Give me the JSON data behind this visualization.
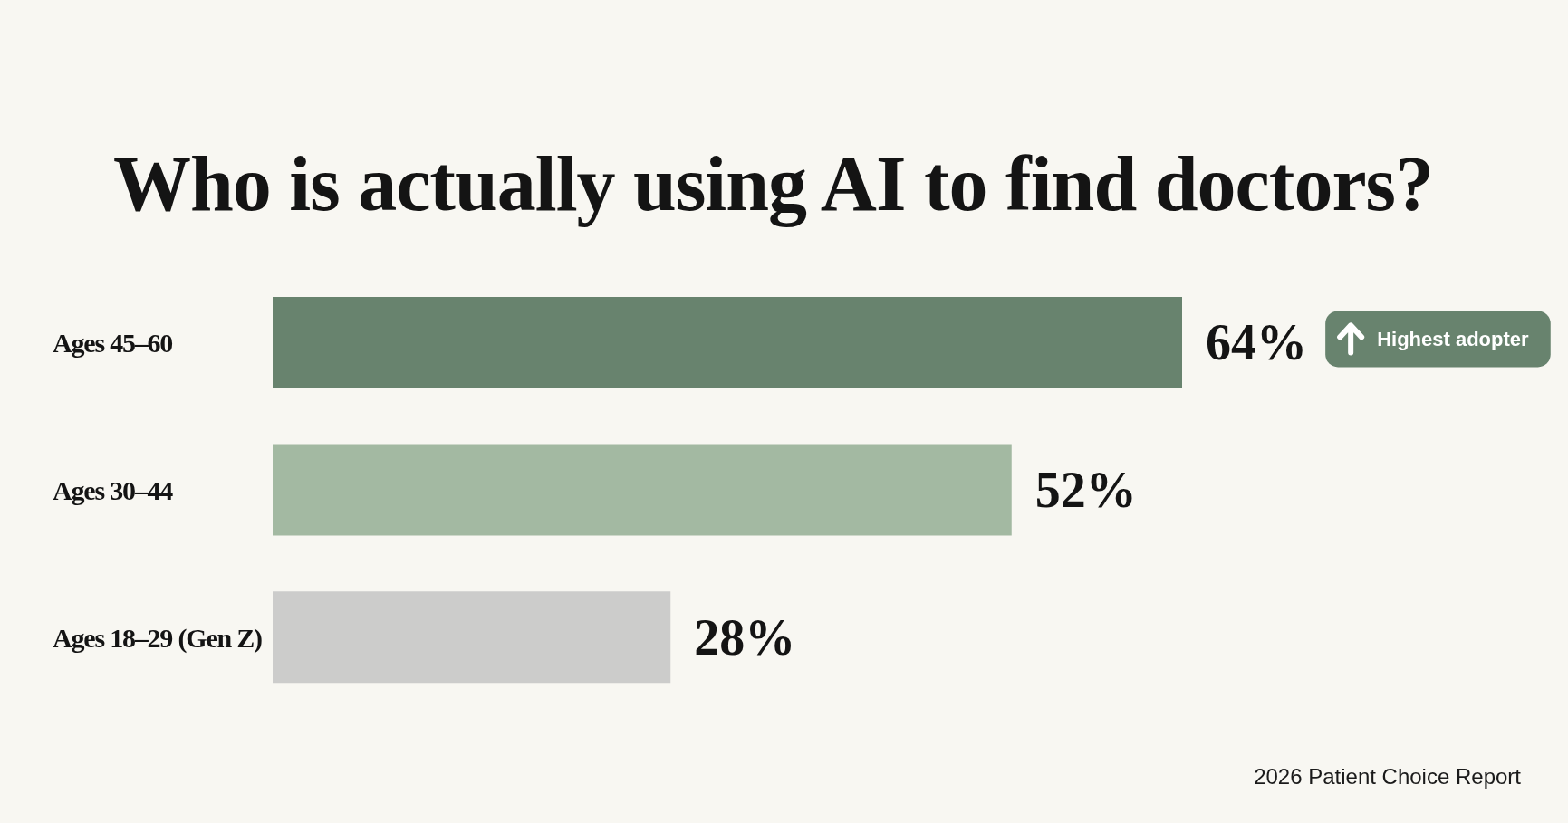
{
  "chart_data": {
    "type": "bar",
    "orientation": "horizontal",
    "title": "Who is actually using AI to find doctors?",
    "categories": [
      "Ages 45–60",
      "Ages 30–44",
      "Ages 18–29 (Gen Z)"
    ],
    "values": [
      64,
      52,
      28
    ],
    "colors": [
      "#68836e",
      "#a3b9a2",
      "#cccccb"
    ],
    "value_labels": [
      "64%",
      "52%",
      "28%"
    ],
    "tick_labels": "y",
    "annotations": [
      "Highest adopter",
      "2026 Patient Choice Report"
    ]
  }
}
